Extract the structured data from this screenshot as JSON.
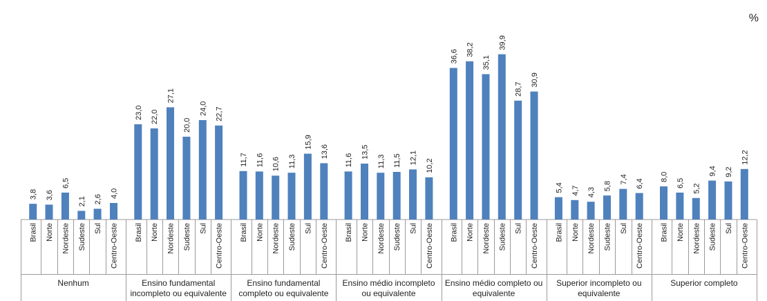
{
  "chart_data": {
    "type": "bar",
    "unit": "%",
    "ylim": [
      0,
      45
    ],
    "grid": false,
    "legend": "none",
    "bar_color": "#4F81BD",
    "regions": [
      "Brasil",
      "Norte",
      "Nordeste",
      "Sudeste",
      "Sul",
      "Centro-Oeste"
    ],
    "groups": [
      {
        "label_lines": [
          "Nenhum"
        ],
        "values": [
          3.8,
          3.6,
          6.5,
          2.1,
          2.6,
          4.0
        ],
        "value_labels": [
          "3,8",
          "3,6",
          "6,5",
          "2,1",
          "2,6",
          "4,0"
        ]
      },
      {
        "label_lines": [
          "Ensino fundamental",
          "incompleto ou equivalente"
        ],
        "values": [
          23.0,
          22.0,
          27.1,
          20.0,
          24.0,
          22.7
        ],
        "value_labels": [
          "23,0",
          "22,0",
          "27,1",
          "20,0",
          "24,0",
          "22,7"
        ]
      },
      {
        "label_lines": [
          "Ensino fundamental",
          "completo ou equivalente"
        ],
        "values": [
          11.7,
          11.6,
          10.6,
          11.3,
          15.9,
          13.6
        ],
        "value_labels": [
          "11,7",
          "11,6",
          "10,6",
          "11,3",
          "15,9",
          "13,6"
        ]
      },
      {
        "label_lines": [
          "Ensino médio incompleto",
          "ou equivalente"
        ],
        "values": [
          11.6,
          13.5,
          11.3,
          11.5,
          12.1,
          10.2
        ],
        "value_labels": [
          "11,6",
          "13,5",
          "11,3",
          "11,5",
          "12,1",
          "10,2"
        ]
      },
      {
        "label_lines": [
          "Ensino médio completo ou",
          "equivalente"
        ],
        "values": [
          36.6,
          38.2,
          35.1,
          39.9,
          28.7,
          30.9
        ],
        "value_labels": [
          "36,6",
          "38,2",
          "35,1",
          "39,9",
          "28,7",
          "30,9"
        ]
      },
      {
        "label_lines": [
          "Superior incompleto ou",
          "equivalente"
        ],
        "values": [
          5.4,
          4.7,
          4.3,
          5.8,
          7.4,
          6.4
        ],
        "value_labels": [
          "5,4",
          "4,7",
          "4,3",
          "5,8",
          "7,4",
          "6,4"
        ]
      },
      {
        "label_lines": [
          "Superior completo"
        ],
        "values": [
          8.0,
          6.5,
          5.2,
          9.4,
          9.2,
          12.2
        ],
        "value_labels": [
          "8,0",
          "6,5",
          "5,2",
          "9,4",
          "9,2",
          "12,2"
        ]
      }
    ]
  }
}
